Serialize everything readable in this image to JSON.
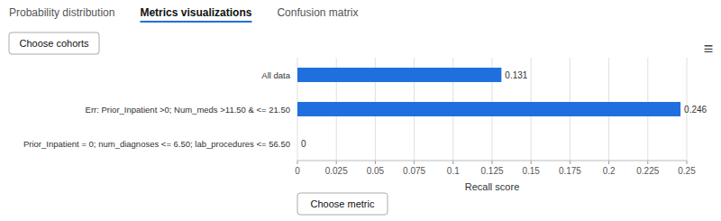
{
  "tabs": [
    "Probability distribution",
    "Metrics visualizations",
    "Confusion matrix"
  ],
  "active_tab": 1,
  "buttons": [
    "Choose cohorts",
    "Choose metric"
  ],
  "menu_icon": "≡",
  "chart_data": {
    "type": "bar",
    "orientation": "horizontal",
    "categories": [
      "All data",
      "Err: Prior_Inpatient >0; Num_meds >11.50 & <= 21.50",
      "Prior_Inpatient = 0; num_diagnoses <= 6.50; lab_procedures <= 56.50"
    ],
    "values": [
      0.131,
      0.246,
      0
    ],
    "color": "#1f6fdf",
    "xlabel": "Recall score",
    "xlim": [
      0,
      0.25
    ],
    "xticks": [
      0,
      0.025,
      0.05,
      0.075,
      0.1,
      0.125,
      0.15,
      0.175,
      0.2,
      0.225,
      0.25
    ],
    "grid": true,
    "data_labels": true
  }
}
